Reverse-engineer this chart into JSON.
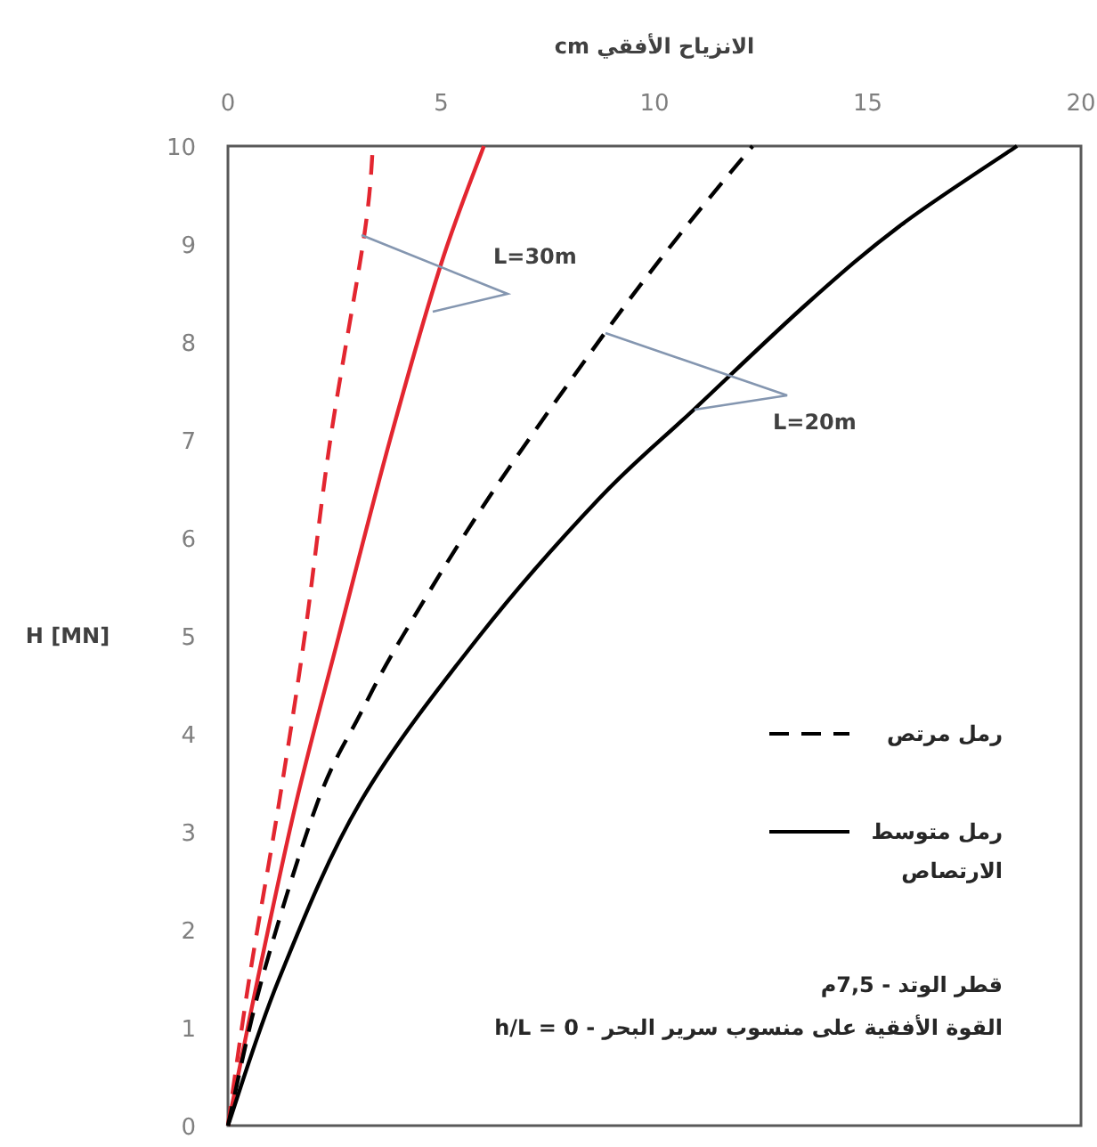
{
  "chart_data": {
    "type": "line",
    "xlabel": "الانزياح الأفقي cm",
    "ylabel": "H [MN]",
    "xlim": [
      0,
      20
    ],
    "xticks": [
      0,
      5,
      10,
      15,
      20
    ],
    "ylim": [
      0,
      10
    ],
    "yticks": [
      0,
      1,
      2,
      3,
      4,
      5,
      6,
      7,
      8,
      9,
      10
    ],
    "grid": false,
    "legend": "bottom right",
    "marker": "none",
    "series": [
      {
        "color": "#e32630",
        "line_style": "dashed",
        "x": [
          0,
          0.5,
          1.2,
          1.8,
          2.4,
          3.2,
          3.4
        ],
        "values": [
          0,
          1.5,
          3.3,
          5,
          7,
          9.1,
          10
        ]
      },
      {
        "color": "#e32630",
        "line_style": "solid",
        "x": [
          0,
          0.7,
          1.6,
          2.6,
          3.8,
          5,
          6
        ],
        "values": [
          0,
          1.5,
          3.3,
          5,
          7,
          8.8,
          10
        ]
      },
      {
        "name": "رمل مرتص",
        "color": "#000000",
        "line_style": "dashed",
        "x": [
          0,
          0.8,
          2.1,
          3.1,
          4.1,
          6.1,
          8.85,
          10.6,
          12.3
        ],
        "values": [
          0,
          1.5,
          3.3,
          4.2,
          5,
          6.4,
          8.1,
          9.1,
          10
        ]
      },
      {
        "name": "رمل متوسط الارتصاص",
        "color": "#000000",
        "line_style": "solid",
        "x": [
          0,
          1.2,
          3.1,
          5.9,
          8.7,
          10.9,
          13.6,
          15.8,
          18.5
        ],
        "values": [
          0,
          1.5,
          3.3,
          5,
          6.4,
          7.3,
          8.4,
          9.2,
          10
        ]
      }
    ],
    "annotations": [
      "L=30m",
      "L=20m",
      "قطر الوتد - 7,5م",
      "h/L = 0 - القوة الأفقية على منسوب سرير البحر"
    ]
  }
}
